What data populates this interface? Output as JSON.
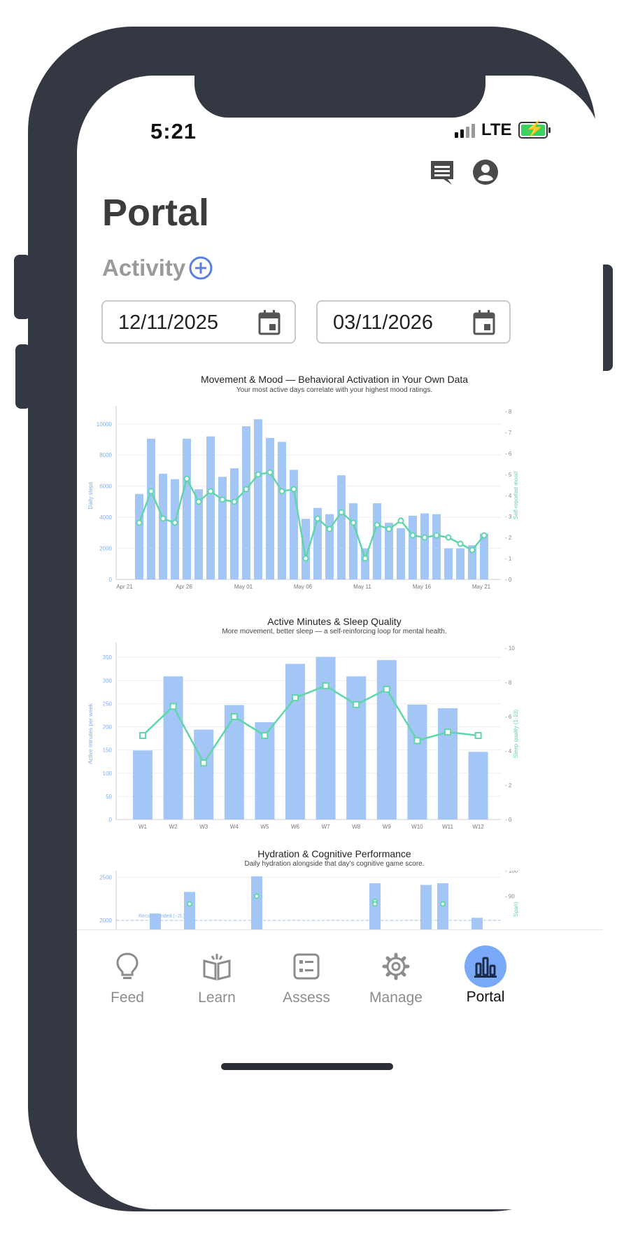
{
  "status": {
    "time": "5:21",
    "network": "LTE"
  },
  "header": {
    "title": "Portal",
    "section_label": "Activity"
  },
  "dates": {
    "start": "12/11/2025",
    "end": "03/11/2026"
  },
  "icons": {
    "messages": "message-icon",
    "profile": "profile-icon",
    "add": "add-circle-icon",
    "calendar": "calendar-icon"
  },
  "colors": {
    "bar": "#a3c6f7",
    "line": "#5fd6a8",
    "accent": "#5b7fe0",
    "left_axis": "#7faef0",
    "right_axis": "#5fd6a8"
  },
  "tabs": [
    {
      "label": "Feed",
      "icon": "lightbulb-icon"
    },
    {
      "label": "Learn",
      "icon": "book-icon"
    },
    {
      "label": "Assess",
      "icon": "checklist-icon"
    },
    {
      "label": "Manage",
      "icon": "gear-icon"
    },
    {
      "label": "Portal",
      "icon": "bar-chart-icon",
      "active": true
    }
  ],
  "chart_data": [
    {
      "type": "bar+line",
      "title": "Movement & Mood — Behavioral Activation in Your Own Data",
      "subtitle": "Your most active days correlate with your highest mood ratings.",
      "ylabel_left": "Daily steps",
      "ylabel_right": "Self-reported mood",
      "ylim_left": [
        0,
        10800
      ],
      "ylim_right": [
        0,
        8
      ],
      "yticks_left": [
        "0",
        "2000",
        "4000",
        "6000",
        "8000",
        "10000"
      ],
      "yticks_right": [
        "0",
        "1",
        "2",
        "3",
        "4",
        "5",
        "6",
        "7",
        "8"
      ],
      "xticks": [
        "Apr 21",
        "Apr 26",
        "May 01",
        "May 06",
        "May 11",
        "May 16",
        "May 21"
      ],
      "grid": true,
      "series": [
        {
          "name": "Daily steps",
          "kind": "bar",
          "values": [
            5500,
            9050,
            6800,
            6450,
            9050,
            5800,
            9200,
            6600,
            7150,
            9850,
            10300,
            9100,
            8850,
            7050,
            3900,
            4600,
            4200,
            6700,
            4900,
            2000,
            4900,
            3650,
            3300,
            4100,
            4250,
            4200,
            2000,
            2000,
            2200,
            2950
          ]
        },
        {
          "name": "Self-reported mood",
          "kind": "line",
          "values": [
            2.7,
            4.2,
            2.9,
            2.7,
            4.8,
            3.7,
            4.2,
            3.8,
            3.7,
            4.3,
            5.0,
            5.1,
            4.2,
            4.3,
            1.0,
            2.9,
            2.4,
            3.2,
            2.7,
            1.0,
            2.6,
            2.4,
            2.8,
            2.1,
            2.0,
            2.1,
            2.0,
            1.7,
            1.4,
            2.1
          ]
        }
      ]
    },
    {
      "type": "bar+line",
      "title": "Active Minutes & Sleep Quality",
      "subtitle": "More movement, better sleep — a self-reinforcing loop for mental health.",
      "ylabel_left": "Active minutes per week",
      "ylabel_right": "Sleep quality (1-10)",
      "ylim_left": [
        0,
        370
      ],
      "ylim_right": [
        0,
        10
      ],
      "yticks_left": [
        "0",
        "50",
        "100",
        "150",
        "200",
        "250",
        "300",
        "350"
      ],
      "yticks_right": [
        "0",
        "2",
        "4",
        "6",
        "8",
        "10"
      ],
      "categories": [
        "W1",
        "W2",
        "W3",
        "W4",
        "W5",
        "W6",
        "W7",
        "W8",
        "W9",
        "W10",
        "W11",
        "W12"
      ],
      "grid": true,
      "series": [
        {
          "name": "Active minutes per week",
          "kind": "bar",
          "values": [
            149,
            309,
            194,
            247,
            210,
            336,
            351,
            309,
            344,
            248,
            240,
            146
          ]
        },
        {
          "name": "Sleep quality (1-10)",
          "kind": "line",
          "values": [
            4.9,
            6.6,
            3.3,
            6.0,
            4.9,
            7.1,
            7.8,
            6.7,
            7.6,
            4.6,
            5.1,
            4.9
          ]
        }
      ]
    },
    {
      "type": "bar+line",
      "title": "Hydration & Cognitive Performance",
      "subtitle": "Daily hydration alongside that day's cognitive game score.",
      "ylabel_right": "Span)",
      "yticks_left": [
        "2000",
        "2500"
      ],
      "yticks_right": [
        "90",
        "100"
      ],
      "annotation": "Recommended (~2L)",
      "visible_partial": true,
      "series": [
        {
          "kind": "bar",
          "values": [
            2080,
            2330,
            2510,
            2430,
            2410,
            2430,
            2030
          ]
        },
        {
          "kind": "line",
          "values": [
            87,
            90,
            88,
            87,
            87
          ]
        }
      ]
    }
  ]
}
